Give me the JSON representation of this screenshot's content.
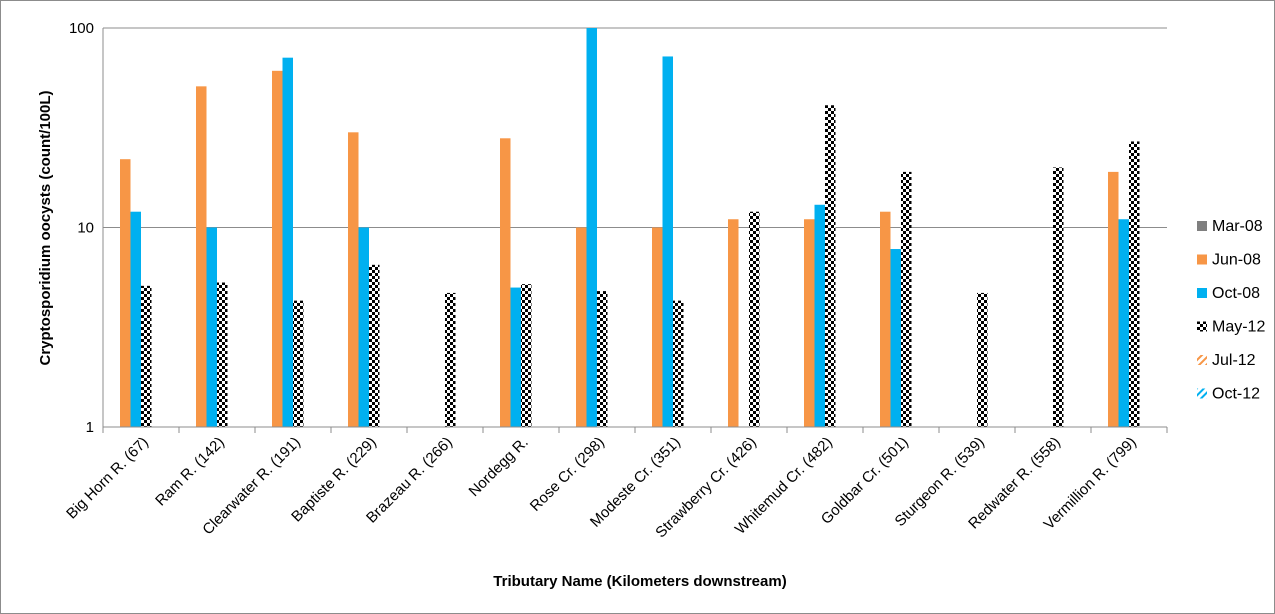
{
  "chart_data": {
    "type": "bar",
    "title": "",
    "xlabel": "Tributary Name (Kilometers downstream)",
    "ylabel": "Cryptosporidium oocysts (count/100L)",
    "yscale": "log",
    "ylim": [
      1,
      100
    ],
    "yticks": [
      "1",
      "10",
      "100"
    ],
    "grid": true,
    "legend": "right",
    "categories": [
      "Big Horn R. (67)",
      "Ram R. (142)",
      "Clearwater R. (191)",
      "Baptiste R. (229)",
      "Brazeau R. (266)",
      "Nordegg R.",
      "Rose Cr. (298)",
      "Modeste Cr. (351)",
      "Strawberry Cr. (426)",
      "Whitemud Cr. (482)",
      "Goldbar Cr. (501)",
      "Sturgeon R. (539)",
      "Redwater R. (558)",
      "Vermillion R. (799)"
    ],
    "series": [
      {
        "name": "Mar-08",
        "color": "#7f7f7f",
        "pattern": "solid",
        "values": [
          null,
          null,
          null,
          null,
          null,
          null,
          null,
          null,
          null,
          null,
          null,
          null,
          null,
          null
        ]
      },
      {
        "name": "Jun-08",
        "color": "#f79646",
        "pattern": "solid",
        "values": [
          22,
          51,
          61,
          30,
          null,
          28,
          10,
          10,
          11,
          11,
          12,
          null,
          null,
          19
        ]
      },
      {
        "name": "Oct-08",
        "color": "#00b0f0",
        "pattern": "solid",
        "values": [
          12,
          10,
          71,
          10,
          null,
          5.0,
          100,
          72,
          null,
          13,
          7.8,
          null,
          null,
          11
        ]
      },
      {
        "name": "May-12",
        "color": "#000000",
        "pattern": "checker",
        "values": [
          5.1,
          5.3,
          4.3,
          6.5,
          4.7,
          5.2,
          4.8,
          4.3,
          12,
          41,
          19,
          4.7,
          20,
          27
        ]
      },
      {
        "name": "Jul-12",
        "color": "#f79646",
        "pattern": "diagonal",
        "values": [
          null,
          null,
          null,
          null,
          null,
          null,
          null,
          null,
          null,
          null,
          null,
          null,
          null,
          null
        ]
      },
      {
        "name": "Oct-12",
        "color": "#00b0f0",
        "pattern": "diagonal",
        "values": [
          null,
          null,
          null,
          null,
          null,
          null,
          null,
          null,
          null,
          null,
          null,
          null,
          null,
          null
        ]
      }
    ]
  }
}
